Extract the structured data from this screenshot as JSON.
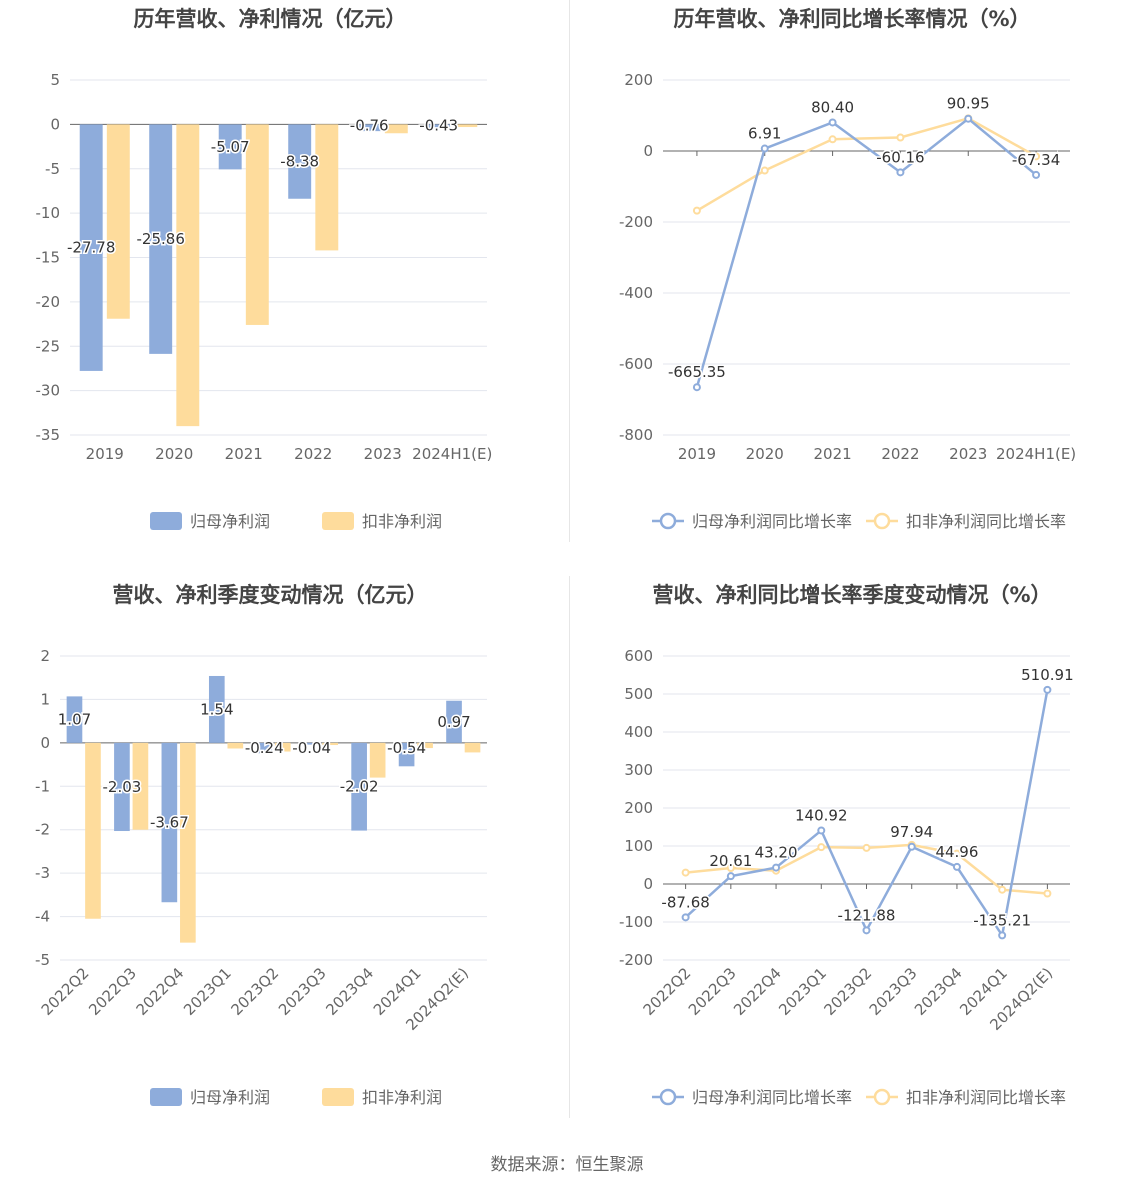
{
  "source_label": "数据来源：恒生聚源",
  "colors": {
    "blue": "#8eacdb",
    "yellow": "#fedc9c",
    "grid": "#e3e6ee",
    "axis": "#666666",
    "text": "#444444"
  },
  "chart_data": [
    {
      "type": "bar",
      "title": "历年营收、净利情况（亿元）",
      "categories": [
        "2019",
        "2020",
        "2021",
        "2022",
        "2023",
        "2024H1(E)"
      ],
      "ylim": [
        -35,
        5
      ],
      "yticks": [
        5,
        0,
        -5,
        -10,
        -15,
        -20,
        -25,
        -30,
        -35
      ],
      "grid": true,
      "legend_position": "bottom",
      "series": [
        {
          "name": "归母净利润",
          "color": "#8eacdb",
          "values": [
            -27.78,
            -25.86,
            -5.07,
            -8.38,
            -0.76,
            -0.43
          ],
          "labels": [
            "-27.78",
            "-25.86",
            "-5.07",
            "-8.38",
            "-0.76",
            "-0.43"
          ]
        },
        {
          "name": "扣非净利润",
          "color": "#fedc9c",
          "values": [
            -21.9,
            -34.0,
            -22.6,
            -14.2,
            -1.0,
            -0.3
          ]
        }
      ]
    },
    {
      "type": "line",
      "title": "历年营收、净利同比增长率情况（%）",
      "categories": [
        "2019",
        "2020",
        "2021",
        "2022",
        "2023",
        "2024H1(E)"
      ],
      "ylim": [
        -800,
        200
      ],
      "yticks": [
        200,
        0,
        -200,
        -400,
        -600,
        -800
      ],
      "grid": true,
      "legend_position": "bottom",
      "series": [
        {
          "name": "归母净利润同比增长率",
          "color": "#8eacdb",
          "values": [
            -665.35,
            6.91,
            80.4,
            -60.16,
            90.95,
            -67.34
          ],
          "labels": [
            "-665.35",
            "6.91",
            "80.40",
            "-60.16",
            "90.95",
            "-67.34"
          ]
        },
        {
          "name": "扣非净利润同比增长率",
          "color": "#fedc9c",
          "values": [
            -168,
            -55,
            33,
            38,
            92,
            -15
          ]
        }
      ]
    },
    {
      "type": "bar",
      "title": "营收、净利季度变动情况（亿元）",
      "categories": [
        "2022Q2",
        "2022Q3",
        "2022Q4",
        "2023Q1",
        "2023Q2",
        "2023Q3",
        "2023Q4",
        "2024Q1",
        "2024Q2(E)"
      ],
      "ylim": [
        -5,
        2
      ],
      "yticks": [
        2,
        1,
        0,
        -1,
        -2,
        -3,
        -4,
        -5
      ],
      "grid": true,
      "legend_position": "bottom",
      "series": [
        {
          "name": "归母净利润",
          "color": "#8eacdb",
          "values": [
            1.07,
            -2.03,
            -3.67,
            1.54,
            -0.24,
            -0.04,
            -2.02,
            -0.54,
            0.97
          ],
          "labels": [
            "1.07",
            "-2.03",
            "-3.67",
            "1.54",
            "-0.24",
            "-0.04",
            "-2.02",
            "-0.54",
            "0.97"
          ]
        },
        {
          "name": "扣非净利润",
          "color": "#fedc9c",
          "values": [
            -4.05,
            -2.0,
            -4.6,
            -0.13,
            -0.2,
            -0.05,
            -0.8,
            -0.12,
            -0.22
          ]
        }
      ]
    },
    {
      "type": "line",
      "title": "营收、净利同比增长率季度变动情况（%）",
      "categories": [
        "2022Q2",
        "2022Q3",
        "2022Q4",
        "2023Q1",
        "2023Q2",
        "2023Q3",
        "2023Q4",
        "2024Q1",
        "2024Q2(E)"
      ],
      "ylim": [
        -200,
        600
      ],
      "yticks": [
        600,
        500,
        400,
        300,
        200,
        100,
        0,
        -100,
        -200
      ],
      "grid": true,
      "legend_position": "bottom",
      "series": [
        {
          "name": "归母净利润同比增长率",
          "color": "#8eacdb",
          "values": [
            -87.68,
            20.61,
            43.2,
            140.92,
            -121.88,
            97.94,
            44.96,
            -135.21,
            510.91
          ],
          "labels": [
            "-87.68",
            "20.61",
            "43.20",
            "140.92",
            "-121.88",
            "97.94",
            "44.96",
            "-135.21",
            "510.91"
          ]
        },
        {
          "name": "扣非净利润同比增长率",
          "color": "#fedc9c",
          "values": [
            30,
            42,
            35,
            97,
            95,
            103,
            80,
            -15,
            -25
          ]
        }
      ]
    }
  ]
}
